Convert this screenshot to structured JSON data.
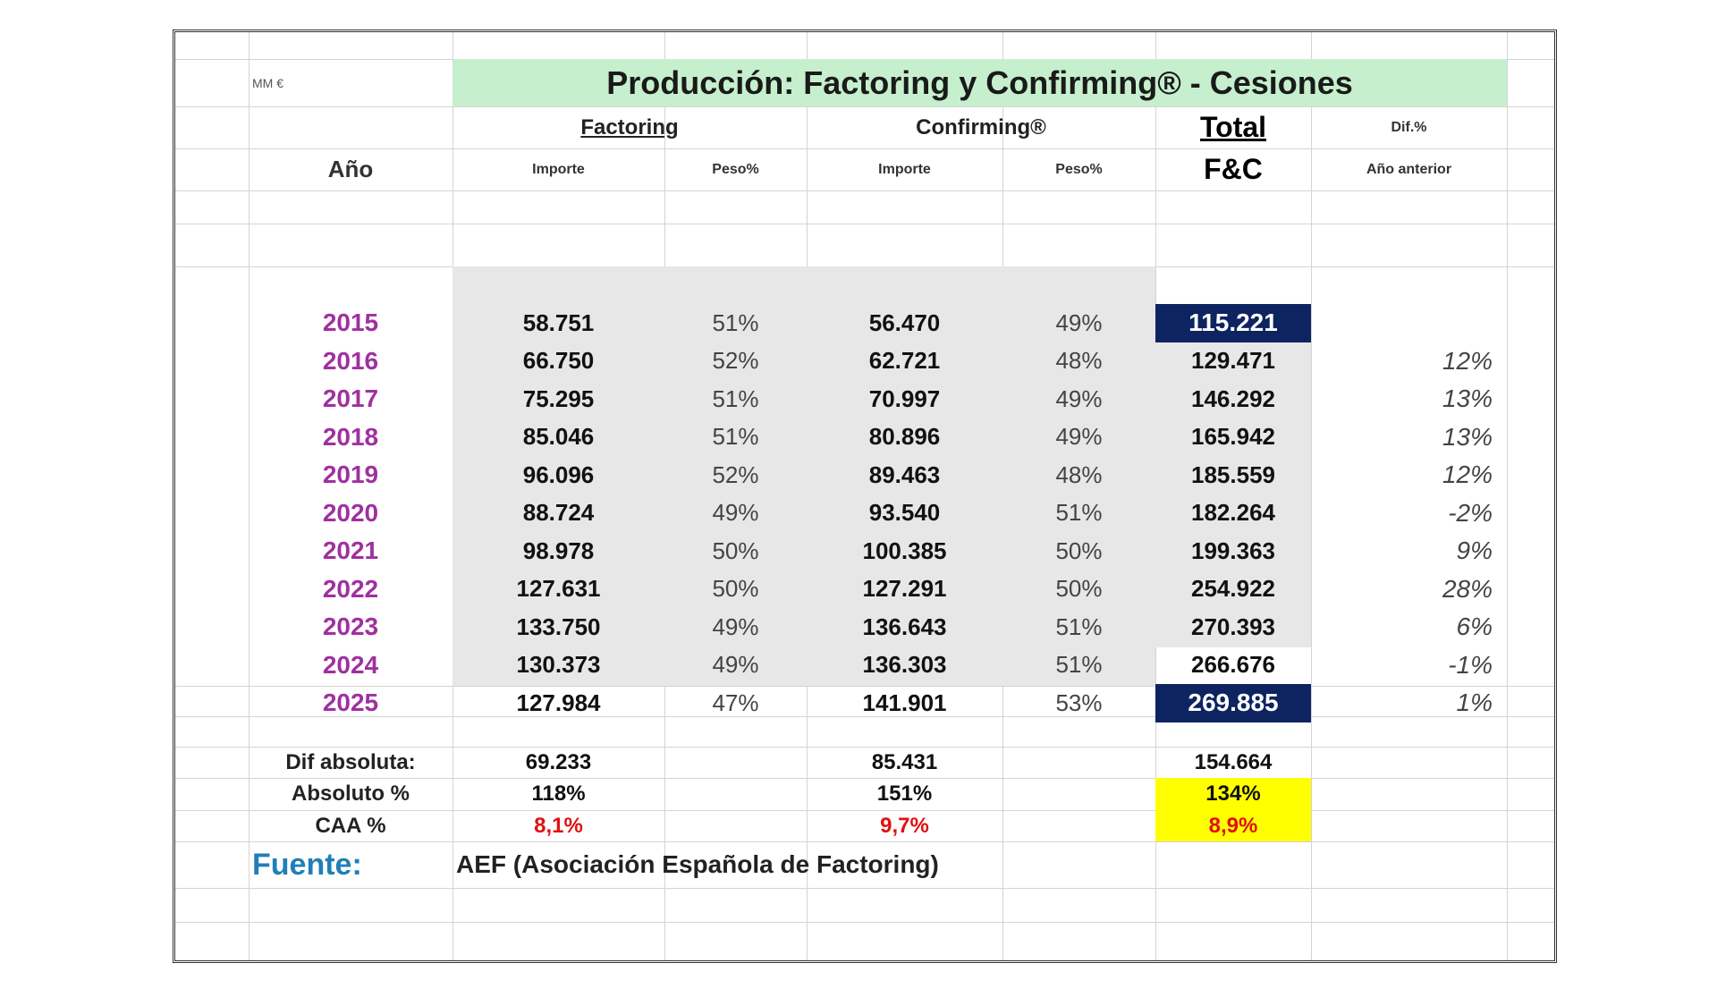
{
  "units_label": "MM €",
  "title": "Producción: Factoring y Confirming® - Cesiones",
  "headers": {
    "factoring": "Factoring",
    "confirming": "Confirming®",
    "total": "Total",
    "total_sub": "F&C",
    "dif_top": "Dif.%",
    "dif_bottom": "Año anterior",
    "ano": "Año",
    "importe": "Importe",
    "peso": "Peso%"
  },
  "rows": [
    {
      "year": "2015",
      "f_importe": "58.751",
      "f_peso": "51%",
      "c_importe": "56.470",
      "c_peso": "49%",
      "total": "115.221",
      "dif": ""
    },
    {
      "year": "2016",
      "f_importe": "66.750",
      "f_peso": "52%",
      "c_importe": "62.721",
      "c_peso": "48%",
      "total": "129.471",
      "dif": "12%"
    },
    {
      "year": "2017",
      "f_importe": "75.295",
      "f_peso": "51%",
      "c_importe": "70.997",
      "c_peso": "49%",
      "total": "146.292",
      "dif": "13%"
    },
    {
      "year": "2018",
      "f_importe": "85.046",
      "f_peso": "51%",
      "c_importe": "80.896",
      "c_peso": "49%",
      "total": "165.942",
      "dif": "13%"
    },
    {
      "year": "2019",
      "f_importe": "96.096",
      "f_peso": "52%",
      "c_importe": "89.463",
      "c_peso": "48%",
      "total": "185.559",
      "dif": "12%"
    },
    {
      "year": "2020",
      "f_importe": "88.724",
      "f_peso": "49%",
      "c_importe": "93.540",
      "c_peso": "51%",
      "total": "182.264",
      "dif": "-2%"
    },
    {
      "year": "2021",
      "f_importe": "98.978",
      "f_peso": "50%",
      "c_importe": "100.385",
      "c_peso": "50%",
      "total": "199.363",
      "dif": "9%"
    },
    {
      "year": "2022",
      "f_importe": "127.631",
      "f_peso": "50%",
      "c_importe": "127.291",
      "c_peso": "50%",
      "total": "254.922",
      "dif": "28%"
    },
    {
      "year": "2023",
      "f_importe": "133.750",
      "f_peso": "49%",
      "c_importe": "136.643",
      "c_peso": "51%",
      "total": "270.393",
      "dif": "6%"
    },
    {
      "year": "2024",
      "f_importe": "130.373",
      "f_peso": "49%",
      "c_importe": "136.303",
      "c_peso": "51%",
      "total": "266.676",
      "dif": "-1%"
    },
    {
      "year": "2025",
      "f_importe": "127.984",
      "f_peso": "47%",
      "c_importe": "141.901",
      "c_peso": "53%",
      "total": "269.885",
      "dif": "1%"
    }
  ],
  "summary": {
    "dif_absoluta": {
      "label": "Dif absoluta:",
      "factoring": "69.233",
      "confirming": "85.431",
      "total": "154.664"
    },
    "absoluto_pct": {
      "label": "Absoluto %",
      "factoring": "118%",
      "confirming": "151%",
      "total": "134%"
    },
    "caa_pct": {
      "label": "CAA %",
      "factoring": "8,1%",
      "confirming": "9,7%",
      "total": "8,9%"
    }
  },
  "fuente": {
    "label": "Fuente:",
    "text": "AEF (Asociación Española de Factoring)"
  },
  "colors": {
    "title_bg": "#c6efce",
    "data_bg": "#e7e7e7",
    "highlight_navy": "#0d2461",
    "highlight_yellow": "#ffff00",
    "year_text": "#a030a0",
    "caa_text": "#e01010",
    "fuente_text": "#1f7fb8"
  }
}
